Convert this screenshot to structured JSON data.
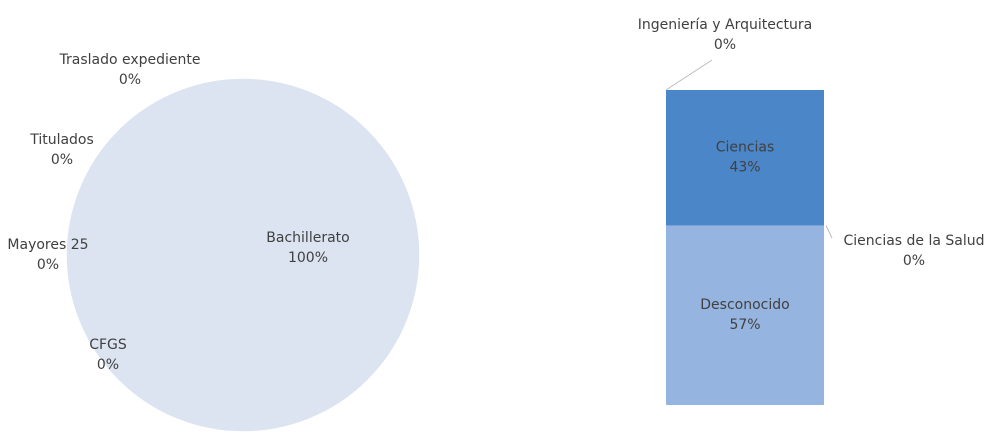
{
  "chart_data": [
    {
      "type": "pie",
      "categories": [
        "Bachillerato",
        "CFGS",
        "Mayores 25",
        "Titulados",
        "Traslado expediente"
      ],
      "values": [
        100,
        0,
        0,
        0,
        0
      ],
      "value_labels": [
        "100%",
        "0%",
        "0%",
        "0%",
        "0%"
      ],
      "color": "#dce4f1"
    },
    {
      "type": "bar",
      "stacked": true,
      "categories": [
        "Desconocido",
        "Ciencias de la Salud",
        "Ciencias",
        "Ingeniería y Arquitectura"
      ],
      "values": [
        57,
        0,
        43,
        0
      ],
      "value_labels": [
        "57%",
        "0%",
        "43%",
        "0%"
      ],
      "colors": [
        "#95b4df",
        "#7aa3d6",
        "#4b86c8",
        "#3b74b8"
      ]
    }
  ]
}
